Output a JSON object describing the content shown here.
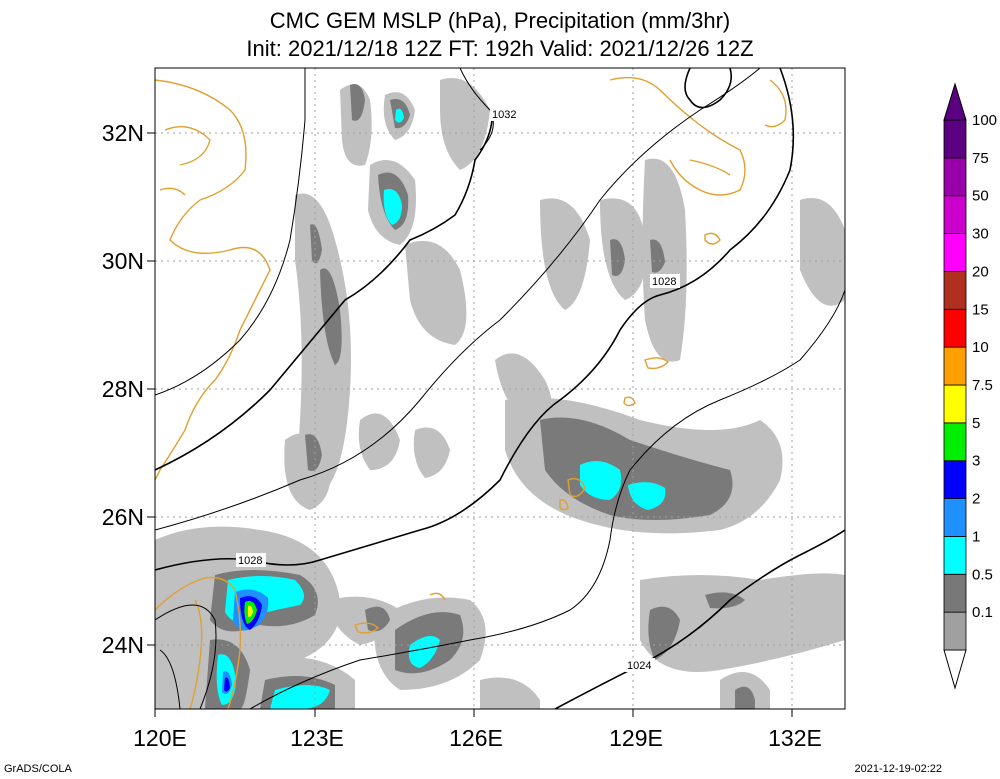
{
  "title": {
    "line1": "CMC GEM MSLP (hPa), Precipitation (mm/3hr)",
    "line2": "Init: 2021/12/18 12Z  FT: 192h  Valid: 2021/12/26 12Z"
  },
  "axes": {
    "lon_ticks": [
      "120E",
      "123E",
      "126E",
      "129E",
      "132E"
    ],
    "lat_ticks": [
      "32N",
      "30N",
      "28N",
      "26N",
      "24N"
    ]
  },
  "isobar_labels": [
    "1032",
    "1028",
    "1028",
    "1024"
  ],
  "colorbar": {
    "labels": [
      "100",
      "75",
      "50",
      "30",
      "20",
      "15",
      "10",
      "7.5",
      "5",
      "3",
      "2",
      "1",
      "0.5",
      "0.1"
    ],
    "colors": [
      "#a0a0a0",
      "#787878",
      "#00ffff",
      "#1e90ff",
      "#0000ff",
      "#00ee00",
      "#ffff00",
      "#ffa000",
      "#ff0000",
      "#b03020",
      "#ff00ff",
      "#cc00cc",
      "#9900aa",
      "#5a0080"
    ],
    "outline_colors": [
      "#d0d0d0"
    ]
  },
  "footer": {
    "left": "GrADS/COLA",
    "right": "2021-12-19-02:22"
  }
}
